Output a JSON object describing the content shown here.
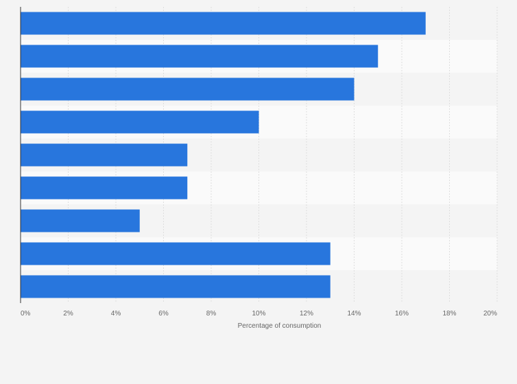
{
  "chart_data": {
    "type": "bar",
    "orientation": "horizontal",
    "categories": [
      "",
      "",
      "",
      "",
      "",
      "",
      "",
      "",
      ""
    ],
    "values": [
      17,
      15,
      14,
      10,
      7,
      7,
      5,
      13,
      13
    ],
    "xlabel": "Percentage of consumption",
    "ylabel": "",
    "xlim": [
      0,
      20
    ],
    "x_ticks": [
      "0%",
      "2%",
      "4%",
      "6%",
      "8%",
      "10%",
      "12%",
      "14%",
      "16%",
      "18%",
      "20%"
    ],
    "grid": true,
    "bar_color": "#2876dd",
    "stripe_colors": [
      "#f4f4f4",
      "#fafafa"
    ]
  }
}
